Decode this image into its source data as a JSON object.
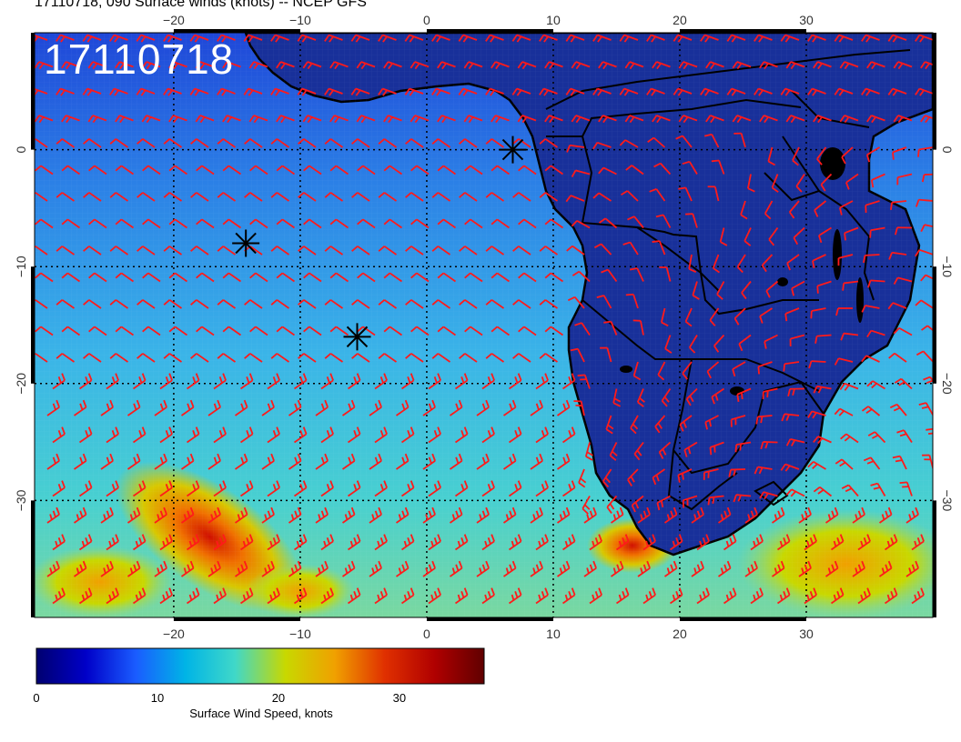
{
  "title": "17110718, 090 Surface winds (knots) -- NCEP GFS",
  "stamp": "17110718",
  "map": {
    "lon_range": [
      -31,
      40
    ],
    "lat_range": [
      -40,
      10
    ],
    "lon_ticks": [
      {
        "value": -20,
        "label": "−20"
      },
      {
        "value": -10,
        "label": "−10"
      },
      {
        "value": 0,
        "label": "0"
      },
      {
        "value": 10,
        "label": "10"
      },
      {
        "value": 20,
        "label": "20"
      },
      {
        "value": 30,
        "label": "30"
      }
    ],
    "lat_ticks": [
      {
        "value": 0,
        "label": "0"
      },
      {
        "value": -10,
        "label": "−10"
      },
      {
        "value": -20,
        "label": "−20"
      },
      {
        "value": -30,
        "label": "−30"
      }
    ],
    "storm_markers": [
      {
        "lon": 6.8,
        "lat": 0.0
      },
      {
        "lon": -14.3,
        "lat": -8.0
      },
      {
        "lon": -5.5,
        "lat": -16.0
      }
    ],
    "barb_color": "#ff1a1a",
    "land_color": "#1a2a8a",
    "coast_color": "#000000"
  },
  "colorbar": {
    "label": "Surface Wind Speed, knots",
    "min": 0,
    "max": 37,
    "ticks": [
      {
        "value": 0,
        "label": "0"
      },
      {
        "value": 10,
        "label": "10"
      },
      {
        "value": 20,
        "label": "20"
      },
      {
        "value": 30,
        "label": "30"
      }
    ],
    "colors": [
      "#000070",
      "#0000c8",
      "#1a5cff",
      "#00b4e6",
      "#40d8c8",
      "#c8d800",
      "#f0a000",
      "#e03000",
      "#b00000",
      "#600000"
    ]
  }
}
